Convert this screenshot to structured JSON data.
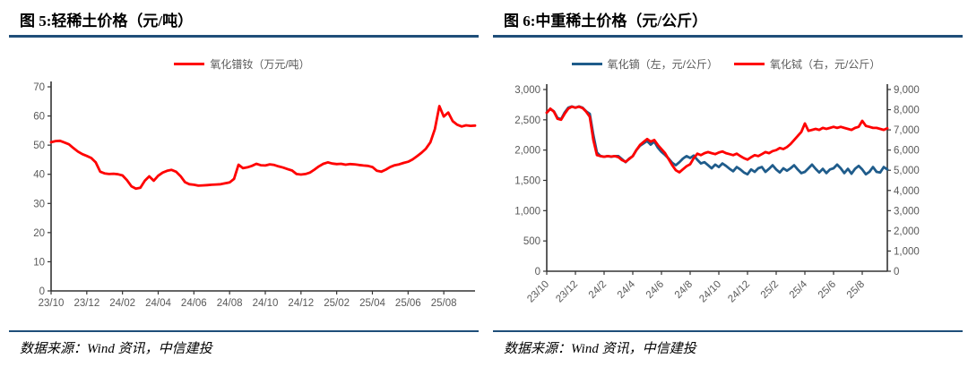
{
  "panels": [
    {
      "title": "图 5:轻稀土价格（元/吨）",
      "source": "数据来源：Wind 资讯，中信建投"
    },
    {
      "title": "图 6:中重稀土价格（元/公斤）",
      "source": "数据来源：Wind 资讯，中信建投"
    }
  ],
  "colors": {
    "rule_navy": "#1F4E79",
    "axis_line": "#333333",
    "axis_text": "#595959",
    "series_red": "#FF0000",
    "series_blue": "#1F5C8B"
  },
  "chart_data": [
    {
      "type": "line",
      "title": "图 5:轻稀土价格（元/吨）",
      "legend_position": "top-center",
      "grid": false,
      "x_tick_labels": [
        "23/10",
        "23/12",
        "24/02",
        "24/04",
        "24/06",
        "24/08",
        "24/10",
        "24/12",
        "25/02",
        "25/04",
        "25/06",
        "25/08"
      ],
      "x_tick_step": 8,
      "ylim": [
        0,
        70
      ],
      "yticks": [
        0,
        10,
        20,
        30,
        40,
        50,
        60,
        70
      ],
      "series": [
        {
          "name": "氧化镨钕（万元/吨）",
          "color": "#FF0000",
          "axis": "left",
          "unit": "万元/吨",
          "values": [
            51,
            51.4,
            51.5,
            50.9,
            50.3,
            49,
            47.8,
            46.9,
            46.3,
            45.6,
            44.1,
            40.9,
            40.3,
            40.1,
            40.2,
            40,
            39.6,
            38,
            35.9,
            35.1,
            35.4,
            37.8,
            39.3,
            37.8,
            39.5,
            40.6,
            41.2,
            41.5,
            40.9,
            39.4,
            37.3,
            36.6,
            36.4,
            36.1,
            36.2,
            36.3,
            36.4,
            36.5,
            36.6,
            36.9,
            37.2,
            38.4,
            43.3,
            42.1,
            42.4,
            42.9,
            43.6,
            43.1,
            43,
            43.4,
            43.2,
            42.7,
            42.3,
            41.8,
            41.3,
            40.1,
            39.9,
            40.1,
            40.6,
            41.6,
            42.7,
            43.6,
            44.1,
            43.7,
            43.5,
            43.6,
            43.3,
            43.5,
            43.4,
            43.2,
            43,
            42.9,
            42.5,
            41.2,
            40.9,
            41.6,
            42.5,
            43.1,
            43.4,
            43.9,
            44.3,
            45.1,
            46.2,
            47.4,
            48.8,
            51,
            55.5,
            63.4,
            59.8,
            61.2,
            58.2,
            57,
            56.4,
            56.8,
            56.6,
            56.7
          ]
        }
      ]
    },
    {
      "type": "line",
      "title": "图 6:中重稀土价格（元/公斤）",
      "legend_position": "top-center",
      "grid": false,
      "x_tick_labels": [
        "23/10",
        "23/12",
        "24/2",
        "24/4",
        "24/6",
        "24/8",
        "24/10",
        "24/12",
        "25/2",
        "25/4",
        "25/6",
        "25/8"
      ],
      "x_tick_step": 8,
      "x_label_rotation": -45,
      "ylim_left": [
        0,
        3000
      ],
      "yticks_left": [
        0,
        500,
        1000,
        1500,
        2000,
        2500,
        3000
      ],
      "ylim_right": [
        0,
        9000
      ],
      "yticks_right": [
        0,
        1000,
        2000,
        3000,
        4000,
        5000,
        6000,
        7000,
        8000,
        9000
      ],
      "series": [
        {
          "name": "氧化镝（左，元/公斤）",
          "color": "#1F5C8B",
          "axis": "left",
          "unit": "元/公斤",
          "values": [
            2620,
            2680,
            2640,
            2530,
            2510,
            2620,
            2700,
            2720,
            2700,
            2720,
            2700,
            2640,
            2600,
            2250,
            1960,
            1900,
            1890,
            1900,
            1890,
            1900,
            1900,
            1850,
            1800,
            1860,
            1900,
            2000,
            2070,
            2110,
            2150,
            2090,
            2140,
            2040,
            1970,
            1920,
            1860,
            1790,
            1750,
            1800,
            1860,
            1900,
            1870,
            1910,
            1840,
            1780,
            1800,
            1750,
            1700,
            1760,
            1720,
            1780,
            1740,
            1690,
            1650,
            1720,
            1680,
            1630,
            1600,
            1680,
            1640,
            1700,
            1720,
            1640,
            1690,
            1750,
            1680,
            1630,
            1700,
            1660,
            1700,
            1750,
            1680,
            1620,
            1640,
            1700,
            1760,
            1690,
            1630,
            1690,
            1620,
            1680,
            1700,
            1760,
            1700,
            1620,
            1690,
            1610,
            1690,
            1740,
            1680,
            1600,
            1640,
            1720,
            1640,
            1630,
            1720,
            1680
          ]
        },
        {
          "name": "氧化铽（右，元/公斤）",
          "color": "#FF0000",
          "axis": "right",
          "unit": "元/公斤",
          "values": [
            7850,
            8050,
            7900,
            7550,
            7500,
            7800,
            8050,
            8150,
            8100,
            8150,
            8080,
            7900,
            7650,
            6500,
            5750,
            5700,
            5670,
            5700,
            5680,
            5700,
            5650,
            5500,
            5420,
            5560,
            5700,
            6000,
            6250,
            6400,
            6550,
            6420,
            6500,
            6250,
            6050,
            5850,
            5550,
            5250,
            5000,
            4900,
            5050,
            5200,
            5300,
            5600,
            5820,
            5750,
            5850,
            5900,
            5850,
            5800,
            5880,
            5930,
            5850,
            5800,
            5750,
            5820,
            5700,
            5600,
            5530,
            5650,
            5750,
            5700,
            5800,
            5900,
            5850,
            5950,
            6000,
            6100,
            6050,
            6150,
            6300,
            6500,
            6700,
            6900,
            7320,
            6950,
            7000,
            7050,
            7000,
            7100,
            7050,
            7100,
            7150,
            7100,
            7150,
            7100,
            7050,
            7000,
            7100,
            7150,
            7450,
            7200,
            7150,
            7100,
            7100,
            7050,
            7000,
            7080
          ]
        }
      ]
    }
  ]
}
